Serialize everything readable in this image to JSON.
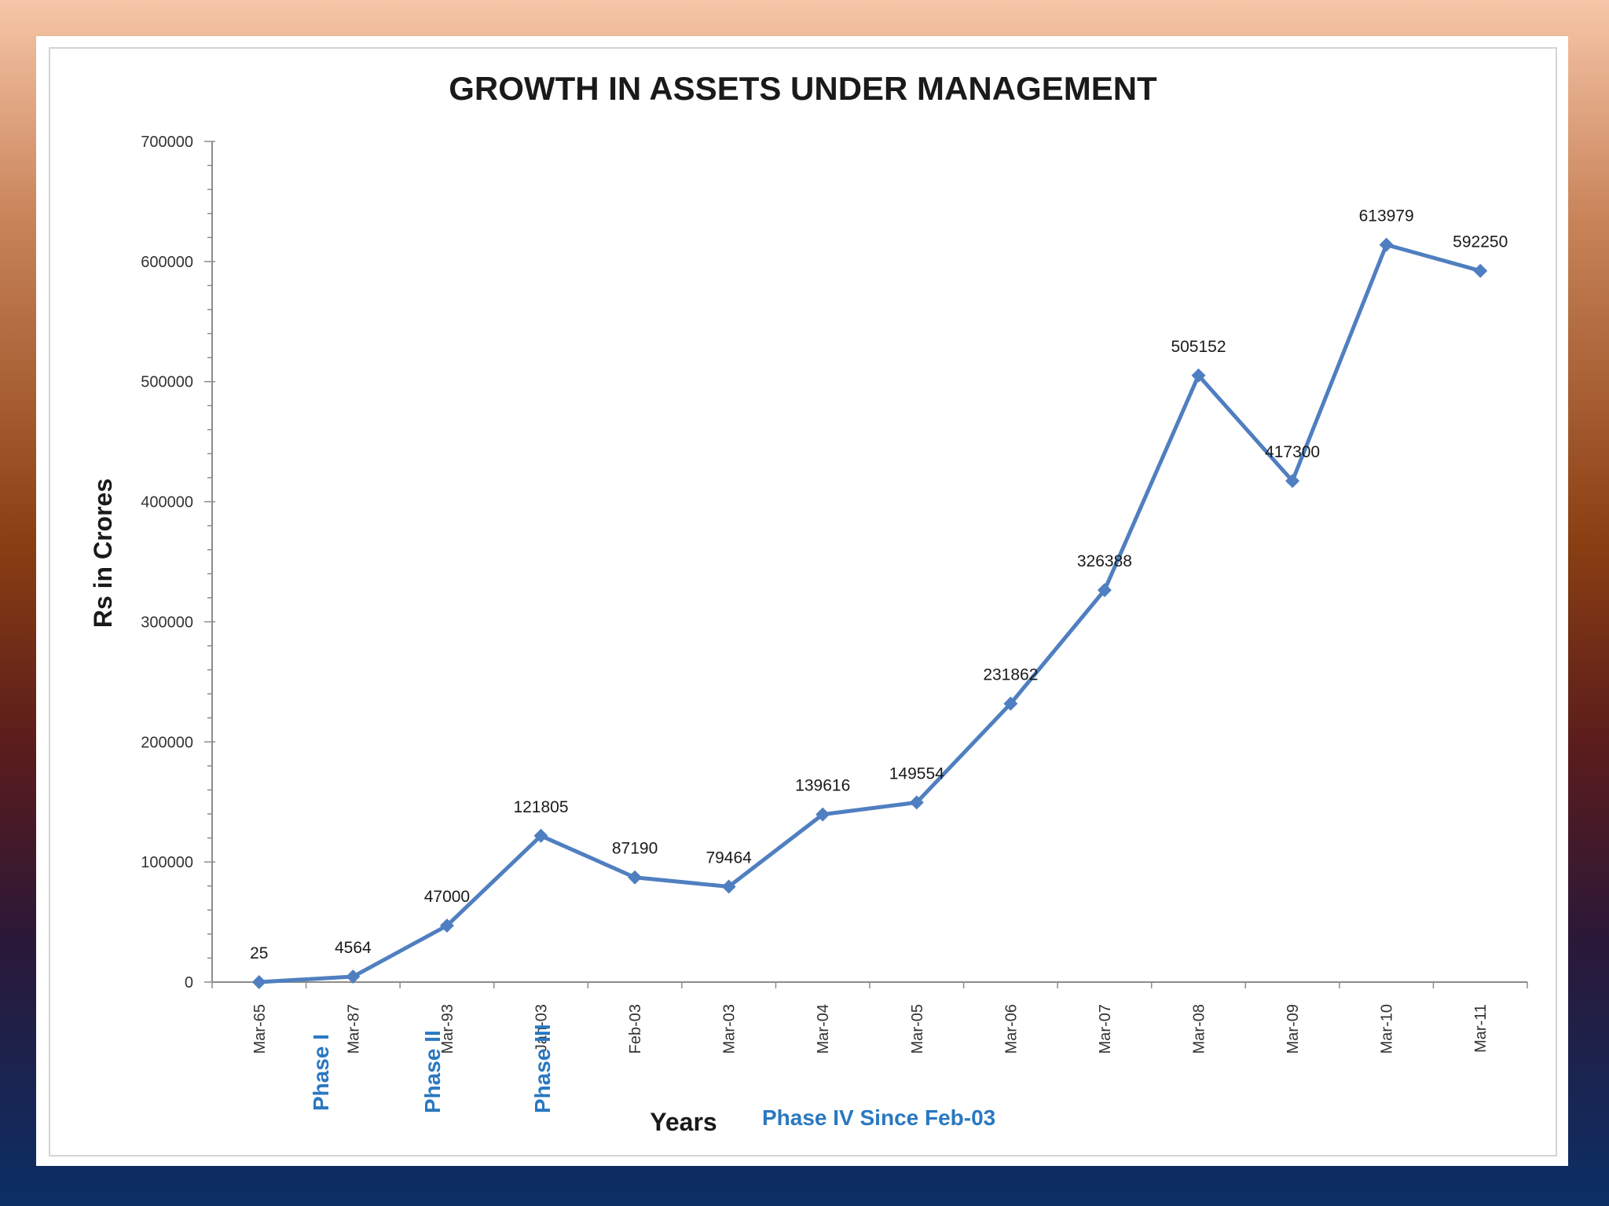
{
  "chart_data": {
    "type": "line",
    "title": "GROWTH IN ASSETS UNDER MANAGEMENT",
    "xlabel": "Years",
    "ylabel": "Rs in Crores",
    "ylim": [
      0,
      700000
    ],
    "y_ticks": [
      "0",
      "100000",
      "200000",
      "300000",
      "400000",
      "500000",
      "600000",
      "700000"
    ],
    "categories": [
      "Mar-65",
      "Mar-87",
      "Mar-93",
      "Jan-03",
      "Feb-03",
      "Mar-03",
      "Mar-04",
      "Mar-05",
      "Mar-06",
      "Mar-07",
      "Mar-08",
      "Mar-09",
      "Mar-10",
      "Mar-11"
    ],
    "series": [
      {
        "name": "Assets Under Management",
        "color": "#4f7fc0",
        "values": [
          25,
          4564,
          47000,
          121805,
          87190,
          79464,
          139616,
          149554,
          231862,
          326388,
          505152,
          417300,
          613979,
          592250
        ],
        "labels": [
          "25",
          "4564",
          "47000",
          "121805",
          "87190",
          "79464",
          "139616",
          "149554",
          "231862",
          "326388",
          "505152",
          "417300",
          "613979",
          "592250"
        ]
      }
    ],
    "annotations": [
      "Phase I",
      "Phase II",
      "Phase III",
      "Phase IV Since Feb-03"
    ]
  }
}
